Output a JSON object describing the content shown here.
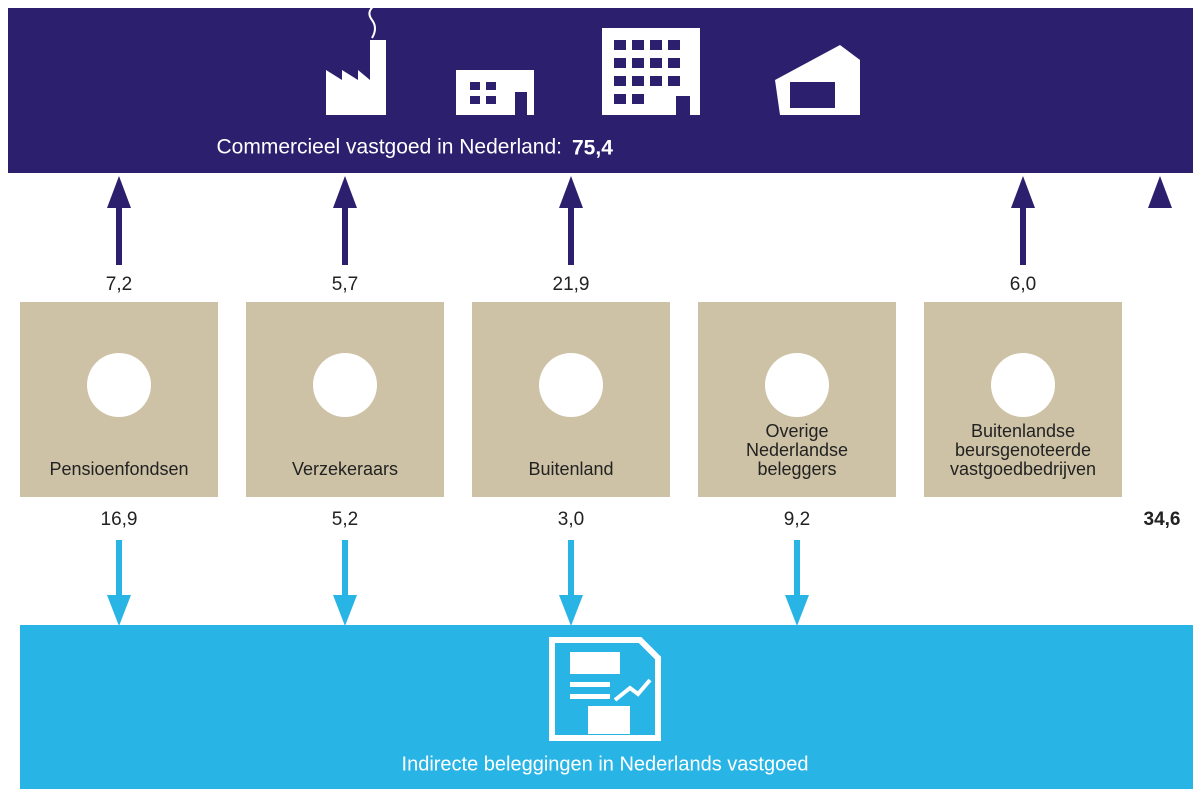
{
  "top": {
    "title": "Commercieel vastgoed in Nederland:",
    "value": "75,4"
  },
  "investors": [
    {
      "label": [
        "Pensioenfondsen"
      ],
      "to_commercial": "7,2",
      "to_indirect": "16,9"
    },
    {
      "label": [
        "Verzekeraars"
      ],
      "to_commercial": "5,7",
      "to_indirect": "5,2"
    },
    {
      "label": [
        "Buitenland"
      ],
      "to_commercial": "21,9",
      "to_indirect": "3,0"
    },
    {
      "label": [
        "Overige",
        "Nederlandse",
        "beleggers"
      ],
      "to_indirect": "9,2"
    },
    {
      "label": [
        "Buitenlandse",
        "beursgenoteerde",
        "vastgoedbedrijven"
      ],
      "to_commercial": "6,0"
    }
  ],
  "indirect_to_commercial": "34,6",
  "bottom": {
    "title": "Indirecte beleggingen in Nederlands vastgoed"
  }
}
